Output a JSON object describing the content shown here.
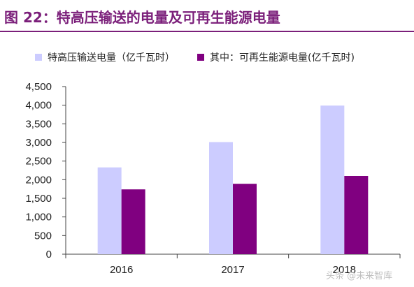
{
  "title": "图 22：特高压输送的电量及可再生能源电量",
  "colors": {
    "title": "#7B1F7A",
    "series_1": "#CCCCFF",
    "series_2": "#800080",
    "axis": "#444444"
  },
  "watermark": "头条 @未来智库",
  "chart_data": {
    "type": "bar",
    "categories": [
      "2016",
      "2017",
      "2018"
    ],
    "series": [
      {
        "name": "特高压输送电量（亿千瓦时）",
        "values": [
          2330,
          3010,
          3990
        ]
      },
      {
        "name": "其中：可再生能源电量(亿千瓦时)",
        "values": [
          1740,
          1890,
          2100
        ]
      }
    ],
    "ylim": [
      0,
      4500
    ],
    "yticks": [
      "0",
      "500",
      "1,000",
      "1,500",
      "2,000",
      "2,500",
      "3,000",
      "3,500",
      "4,000",
      "4,500"
    ],
    "grid": false,
    "legend_position": "top"
  }
}
